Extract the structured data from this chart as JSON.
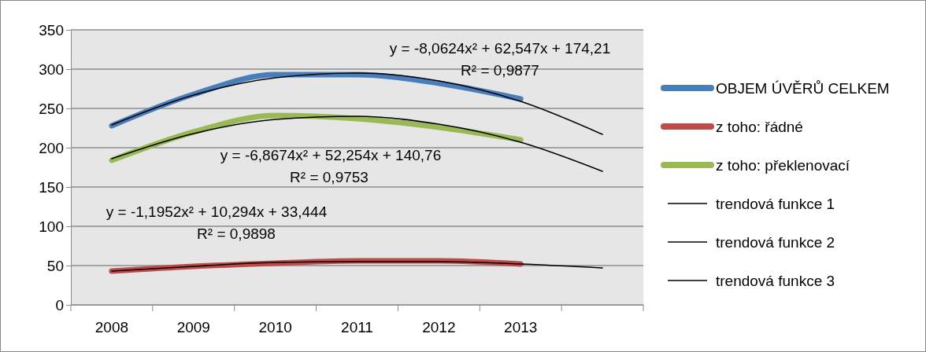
{
  "chart_data": {
    "type": "line",
    "categories": [
      "2008",
      "2009",
      "2010",
      "2011",
      "2012",
      "2013",
      null
    ],
    "series": [
      {
        "name": "OBJEM ÚVĚRŮ CELKEM",
        "color": "#4a7ebb",
        "values": [
          228,
          268,
          293,
          293,
          282,
          262,
          null
        ]
      },
      {
        "name": "z toho: řádné",
        "color": "#be4b48",
        "values": [
          43,
          49,
          53,
          56,
          56,
          52,
          null
        ]
      },
      {
        "name": "z toho: překlenovací",
        "color": "#98b954",
        "values": [
          184,
          220,
          241,
          237,
          226,
          210,
          null
        ]
      },
      {
        "name": "trendová funkce 1",
        "type": "line",
        "color": "#000000",
        "values": [
          229,
          267,
          289,
          295,
          285,
          259,
          217
        ]
      },
      {
        "name": "trendová funkce 2",
        "type": "line",
        "color": "#000000",
        "values": [
          43,
          49,
          54,
          55,
          55,
          52,
          47
        ]
      },
      {
        "name": "trendová funkce 3",
        "type": "line",
        "color": "#000000",
        "values": [
          186,
          218,
          236,
          240,
          230,
          207,
          170
        ]
      }
    ],
    "ylim": [
      0,
      350
    ],
    "yticks": [
      0,
      50,
      100,
      150,
      200,
      250,
      300,
      350
    ],
    "grid": "y",
    "legend": "right",
    "annotations": [
      "y = -8,0624x² + 62,547x + 174,21",
      "R² = 0,9877",
      "y = -6,8674x² + 52,254x + 140,76",
      "R² = 0,9753",
      "y = -1,1952x² + 10,294x + 33,444",
      "R² = 0,9898"
    ]
  }
}
